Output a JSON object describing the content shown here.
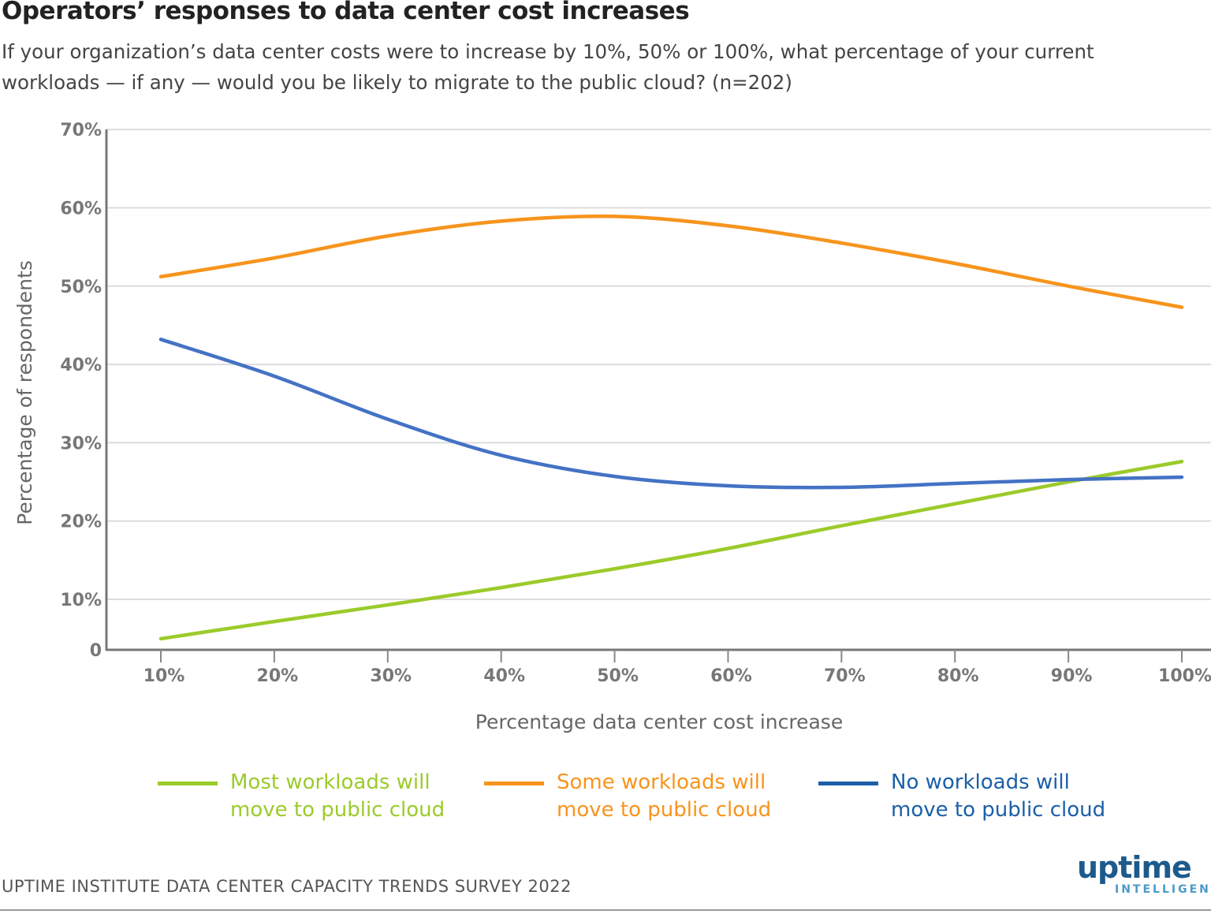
{
  "title": "Operators’ responses to data center cost increases",
  "subtitle": "If your organization’s data center costs were to increase by 10%, 50% or 100%, what percentage of your current workloads — if any — would you be likely to migrate to the public cloud? (n=202)",
  "source": "UPTIME INSTITUTE DATA CENTER CAPACITY TRENDS SURVEY 2022",
  "logo": {
    "main": "uptime",
    "sub": "INTELLIGENCE"
  },
  "chart_data": {
    "type": "line",
    "xlabel": "Percentage data center cost increase",
    "ylabel": "Percentage of respondents",
    "x": [
      10,
      20,
      30,
      40,
      50,
      60,
      70,
      80,
      90,
      100
    ],
    "x_tick_labels": [
      "10%",
      "20%",
      "30%",
      "40%",
      "50%",
      "60%",
      "70%",
      "80%",
      "90%",
      "100%"
    ],
    "y_ticks": [
      0,
      10,
      20,
      30,
      40,
      50,
      60,
      70
    ],
    "y_tick_labels": [
      "0",
      "10%",
      "20%",
      "30%",
      "40%",
      "50%",
      "60%",
      "70%"
    ],
    "ylim": [
      0,
      70
    ],
    "grid": true,
    "legend_placement": "bottom",
    "series": [
      {
        "name": "Most workloads will move to public cloud",
        "legend_lines": [
          "Most workloads will",
          "move to public cloud"
        ],
        "color": "#9bcb2a",
        "values": [
          2.2,
          5.6,
          8.9,
          11.5,
          13.9,
          16.5,
          19.4,
          22.2,
          25.0,
          27.6
        ]
      },
      {
        "name": "Some workloads will move to public cloud",
        "legend_lines": [
          "Some workloads will",
          "move to public cloud"
        ],
        "color": "#f7941d",
        "values": [
          51.2,
          53.6,
          56.4,
          58.3,
          58.9,
          57.7,
          55.5,
          52.9,
          50.0,
          47.3
        ]
      },
      {
        "name": "No workloads will move to public cloud",
        "legend_lines": [
          "No workloads will",
          "move to public cloud"
        ],
        "color": "#4472c4",
        "legend_color": "#1b5fa8",
        "values": [
          43.2,
          38.5,
          33.0,
          28.4,
          25.7,
          24.5,
          24.3,
          24.8,
          25.3,
          25.6
        ]
      }
    ]
  }
}
